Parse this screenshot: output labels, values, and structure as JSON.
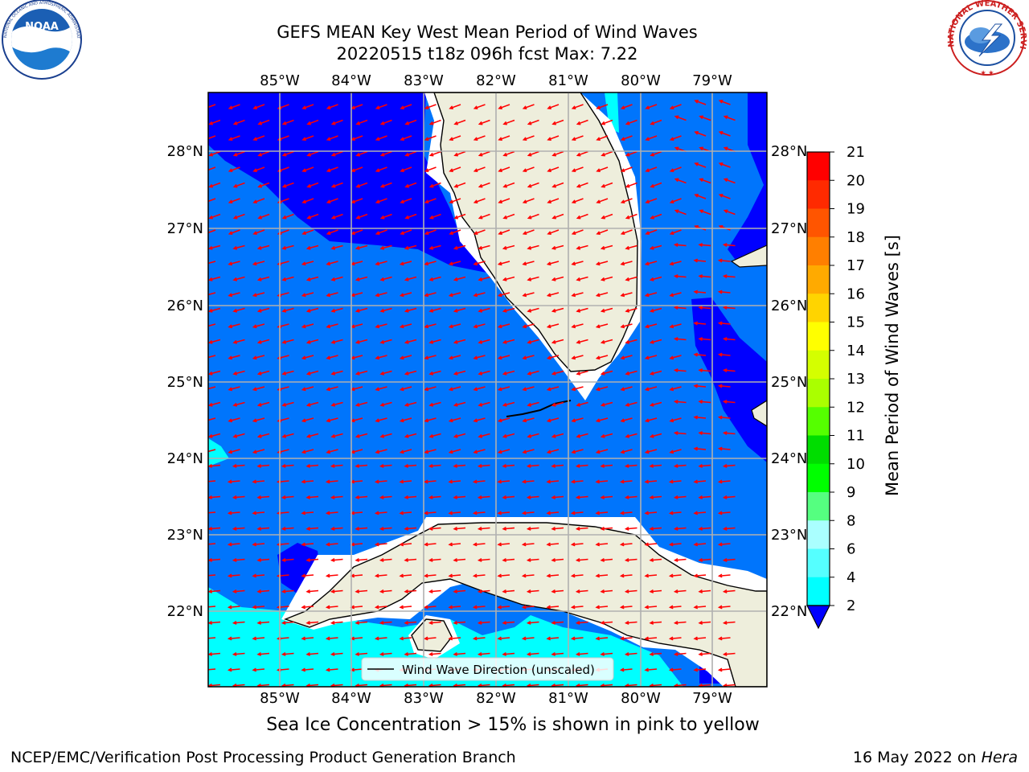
{
  "header": {
    "title_line1": "GEFS MEAN Key West Mean Period of Wind Waves",
    "title_line2": "20220515 t18z 096h fcst   Max: 7.22"
  },
  "logos": {
    "left": "NOAA",
    "left_ring": "NATIONAL OCEANIC AND ATMOSPHERIC ADMINISTRATION · U.S. DEPARTMENT OF COMMERCE",
    "right_ring": "NATIONAL WEATHER SERVICE"
  },
  "map": {
    "lon_labels": [
      "85°W",
      "84°W",
      "83°W",
      "82°W",
      "81°W",
      "80°W",
      "79°W"
    ],
    "lat_labels": [
      "28°N",
      "27°N",
      "26°N",
      "25°N",
      "24°N",
      "23°N",
      "22°N"
    ],
    "legend_label": "Wind Wave Direction (unscaled)",
    "arrow_color": "#ff0000",
    "land_color": "#eeeedc",
    "band_colors": {
      "2-4": "#0075fc",
      "lt2": "#0000ff",
      "4-6": "#00ffff"
    }
  },
  "colorbar": {
    "label": "Mean Period of Wind Waves [s]",
    "ticks": [
      "21",
      "20",
      "19",
      "18",
      "17",
      "16",
      "15",
      "14",
      "13",
      "12",
      "11",
      "10",
      "9",
      "8",
      "6",
      "4",
      "2"
    ],
    "colors": [
      "#ff0000",
      "#ff2a00",
      "#ff5500",
      "#ff7f00",
      "#ffaa00",
      "#ffd400",
      "#ffff00",
      "#d4ff00",
      "#aaff00",
      "#55ff00",
      "#00dd00",
      "#00ff00",
      "#55ff80",
      "#aaffff",
      "#55ffff",
      "#00ffff",
      "#0075fc",
      "#0000ff"
    ]
  },
  "note": "Sea Ice Concentration > 15% is shown in pink to yellow",
  "footer": {
    "left": "NCEP/EMC/Verification Post Processing Product Generation Branch",
    "right_prefix": "16 May 2022 on",
    "right_host": "Hera"
  }
}
